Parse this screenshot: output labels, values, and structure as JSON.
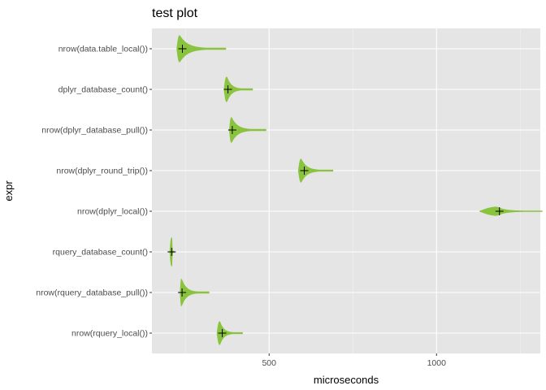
{
  "chart_data": {
    "type": "violin",
    "title": "test plot",
    "xlabel": "microseconds",
    "ylabel": "expr",
    "xlim": [
      150,
      1310
    ],
    "x_ticks": [
      500,
      1000
    ],
    "x_minor_ticks": [
      250,
      750,
      1250
    ],
    "grid": true,
    "orientation": "horizontal",
    "categories": [
      "nrow(data.table_local())",
      "dplyr_database_count()",
      "nrow(dplyr_database_pull())",
      "nrow(dplyr_round_trip())",
      "nrow(dplyr_local())",
      "rquery_database_count()",
      "nrow(rquery_database_pull())",
      "nrow(rquery_local())"
    ],
    "series": [
      {
        "name": "nrow(data.table_local())",
        "min": 225,
        "q_mode": 232,
        "max": 370,
        "mean": 241,
        "max_halfwidth": 0.32
      },
      {
        "name": "dplyr_database_count()",
        "min": 366,
        "q_mode": 373,
        "max": 450,
        "mean": 377,
        "max_halfwidth": 0.3
      },
      {
        "name": "nrow(dplyr_database_pull())",
        "min": 382,
        "q_mode": 387,
        "max": 490,
        "mean": 390,
        "max_halfwidth": 0.3
      },
      {
        "name": "nrow(dplyr_round_trip())",
        "min": 588,
        "q_mode": 595,
        "max": 690,
        "mean": 605,
        "max_halfwidth": 0.28
      },
      {
        "name": "nrow(dplyr_local())",
        "min": 1130,
        "q_mode": 1180,
        "max": 1315,
        "mean": 1188,
        "max_halfwidth": 0.1
      },
      {
        "name": "rquery_database_count()",
        "min": 204,
        "q_mode": 209,
        "max": 215,
        "mean": 209,
        "max_halfwidth": 0.34
      },
      {
        "name": "nrow(rquery_database_pull())",
        "min": 235,
        "q_mode": 238,
        "max": 320,
        "mean": 240,
        "max_halfwidth": 0.32
      },
      {
        "name": "nrow(rquery_local())",
        "min": 345,
        "q_mode": 352,
        "max": 420,
        "mean": 360,
        "max_halfwidth": 0.28
      }
    ],
    "colors": {
      "violin_fill": "#8ac43f",
      "mean_marker": "#000000",
      "panel_background": "#e5e5e5",
      "grid_major": "#ffffff",
      "grid_minor": "#f2f2f2"
    }
  }
}
